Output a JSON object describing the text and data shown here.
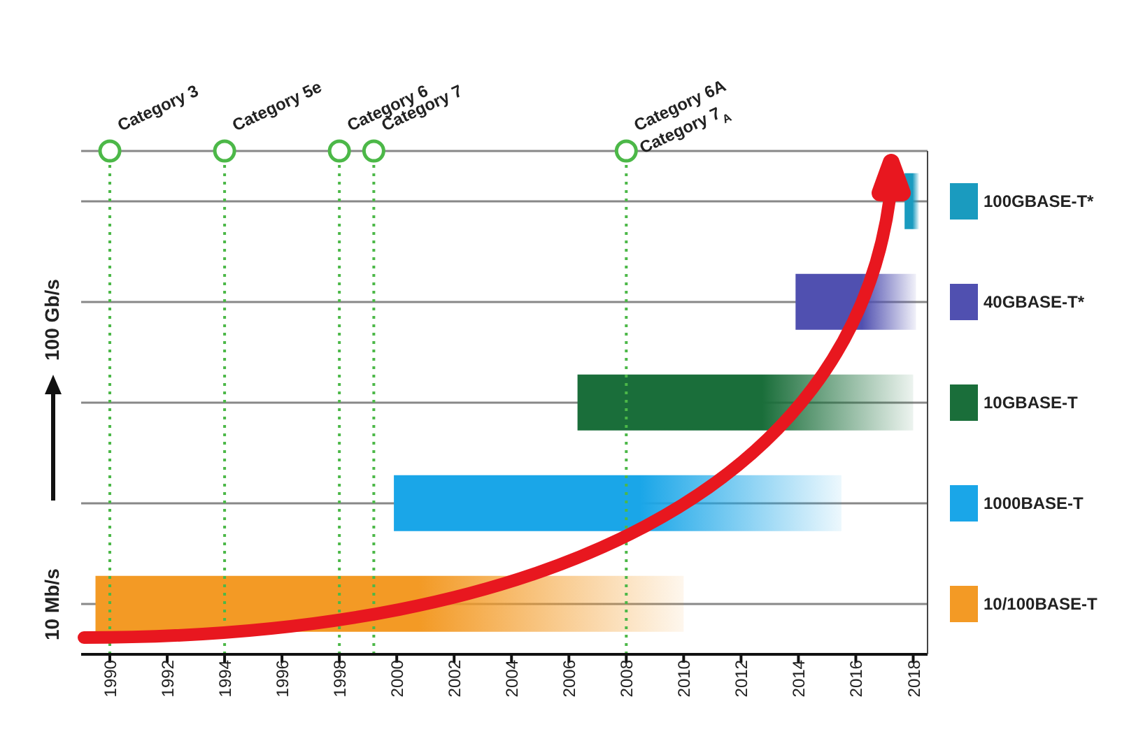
{
  "chart_data": {
    "type": "bar",
    "orientation": "horizontal",
    "categories": [
      "100GBASE-T*",
      "40GBASE-T*",
      "10GBASE-T",
      "1000BASE-T",
      "10/100BASE-T"
    ],
    "base": [
      2017.7,
      2013.9,
      2006.3,
      1999.9,
      1989.5
    ],
    "values": [
      0.5,
      4.2,
      11.7,
      15.6,
      20.5
    ],
    "colors": [
      "#1a9bbf",
      "#5050b0",
      "#1a6e3a",
      "#1aa6e8",
      "#f39a25"
    ],
    "xlim": [
      1989,
      2018.5
    ],
    "xticks": [
      1990,
      1992,
      1994,
      1996,
      1998,
      2000,
      2002,
      2004,
      2006,
      2008,
      2010,
      2012,
      2014,
      2016,
      2018
    ],
    "grid": "y",
    "ref_lines": [
      {
        "axis": "x",
        "value": 1990,
        "label": "Category 3",
        "color": "#4cb848",
        "line_style": "dotted"
      },
      {
        "axis": "x",
        "value": 1994,
        "label": "Category 5e",
        "color": "#4cb848",
        "line_style": "dotted"
      },
      {
        "axis": "x",
        "value": 1998,
        "label": "Category 6",
        "color": "#4cb848",
        "line_style": "dotted"
      },
      {
        "axis": "x",
        "value": 1999.2,
        "label": "Category 7",
        "color": "#4cb848",
        "line_style": "dotted"
      },
      {
        "axis": "x",
        "value": 2008,
        "label": "Category 6A\nCategory 7$_{A}$",
        "color": "#4cb848",
        "line_style": "dotted"
      }
    ],
    "annotations": [
      "10 Mb/s",
      "100 Gb/s"
    ]
  }
}
